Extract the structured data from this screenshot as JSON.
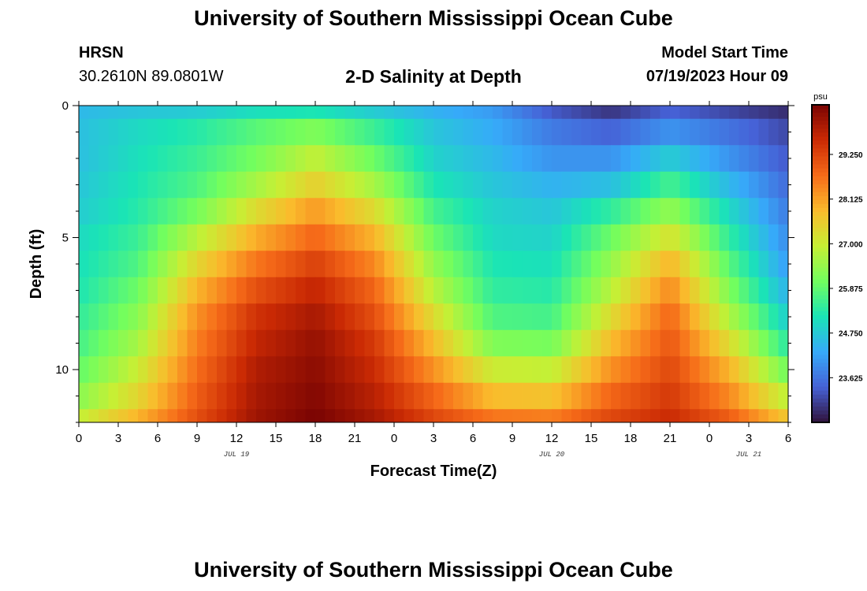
{
  "header": {
    "title": "University of Southern Mississippi Ocean Cube",
    "station_name": "HRSN",
    "station_coords": "30.2610N  89.0801W",
    "plot_title": "2-D Salinity at Depth",
    "model_start_label": "Model Start Time",
    "model_start_value": "07/19/2023 Hour 09"
  },
  "footer": {
    "title": "University of Southern Mississippi Ocean Cube"
  },
  "chart_data": {
    "type": "heatmap",
    "title": "2-D Salinity at Depth",
    "xlabel": "Forecast Time(Z)",
    "ylabel": "Depth (ft)",
    "x_tick_labels": [
      "0",
      "3",
      "6",
      "9",
      "12",
      "15",
      "18",
      "21",
      "0",
      "3",
      "6",
      "9",
      "12",
      "15",
      "18",
      "21",
      "0",
      "3",
      "6"
    ],
    "x_range_hours": [
      0,
      54
    ],
    "date_labels": [
      {
        "label": "JUL 19",
        "hour": 12
      },
      {
        "label": "JUL 20",
        "hour": 36
      },
      {
        "label": "JUL 21",
        "hour": 51
      }
    ],
    "y_tick_labels": [
      "0",
      "5",
      "10"
    ],
    "y_tick_values": [
      0,
      5,
      10
    ],
    "y_range_ft": [
      0,
      12
    ],
    "depth_levels_ft": [
      0,
      1,
      2,
      3,
      4,
      5,
      6,
      7,
      8,
      9,
      10,
      11,
      12
    ],
    "salinity_psu_rows": [
      [
        24.5,
        24.7,
        24.8,
        25.1,
        25.2,
        24.8,
        24.4,
        24.1,
        23.3,
        22.9,
        23.4,
        23.1,
        22.8
      ],
      [
        24.6,
        25.0,
        25.3,
        25.8,
        26.2,
        25.5,
        24.7,
        24.3,
        23.7,
        23.4,
        24.0,
        23.6,
        23.1
      ],
      [
        24.6,
        25.1,
        25.5,
        26.1,
        26.9,
        26.0,
        24.9,
        24.5,
        24.0,
        24.0,
        24.8,
        24.0,
        23.3
      ],
      [
        24.7,
        25.2,
        25.7,
        26.6,
        27.5,
        26.6,
        25.2,
        24.7,
        24.4,
        24.6,
        25.6,
        24.5,
        23.5
      ],
      [
        24.8,
        25.3,
        26.1,
        27.3,
        28.2,
        27.3,
        25.6,
        24.9,
        24.7,
        25.4,
        26.4,
        25.0,
        23.7
      ],
      [
        25.0,
        25.5,
        26.8,
        28.0,
        28.8,
        27.9,
        26.0,
        25.0,
        24.9,
        26.0,
        27.2,
        25.4,
        23.9
      ],
      [
        25.1,
        25.7,
        27.4,
        28.6,
        29.3,
        28.4,
        26.4,
        25.2,
        25.1,
        26.4,
        27.9,
        25.8,
        24.1
      ],
      [
        25.2,
        26.0,
        27.9,
        29.1,
        29.7,
        28.8,
        26.8,
        25.4,
        25.3,
        26.8,
        28.4,
        26.2,
        24.4
      ],
      [
        25.4,
        26.3,
        28.3,
        29.5,
        30.0,
        29.1,
        27.3,
        25.7,
        25.6,
        27.3,
        28.8,
        26.7,
        24.8
      ],
      [
        25.6,
        26.6,
        28.5,
        29.7,
        30.2,
        29.4,
        27.8,
        26.2,
        26.1,
        27.8,
        29.0,
        27.3,
        25.3
      ],
      [
        25.9,
        27.0,
        28.7,
        29.9,
        30.3,
        29.6,
        28.3,
        27.0,
        26.9,
        28.3,
        29.2,
        27.9,
        26.0
      ],
      [
        26.3,
        27.4,
        28.9,
        30.0,
        30.4,
        29.8,
        28.8,
        27.8,
        27.7,
        28.8,
        29.4,
        28.4,
        26.8
      ],
      [
        26.9,
        27.9,
        29.1,
        30.1,
        30.5,
        30.0,
        29.2,
        28.6,
        28.5,
        29.2,
        29.6,
        28.9,
        27.6
      ]
    ],
    "time_columns_hours": [
      0,
      4.5,
      9,
      13.5,
      18,
      22.5,
      27,
      31.5,
      36,
      40.5,
      45,
      49.5,
      54
    ],
    "colorbar": {
      "unit": "psu",
      "tick_labels": [
        "23.625",
        "24.750",
        "25.875",
        "27.000",
        "28.125",
        "29.250"
      ],
      "tick_values": [
        23.625,
        24.75,
        25.875,
        27.0,
        28.125,
        29.25
      ],
      "range": [
        22.5,
        30.5
      ]
    },
    "colormap": [
      "#30123b",
      "#4662d7",
      "#36aaf9",
      "#1ae4b6",
      "#72fe5e",
      "#c7ef34",
      "#fabb2c",
      "#f66b19",
      "#ca2a04",
      "#7a0403"
    ]
  }
}
